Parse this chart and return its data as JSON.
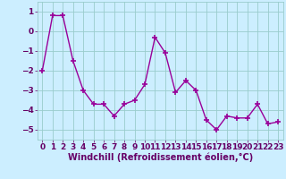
{
  "x": [
    0,
    1,
    2,
    3,
    4,
    5,
    6,
    7,
    8,
    9,
    10,
    11,
    12,
    13,
    14,
    15,
    16,
    17,
    18,
    19,
    20,
    21,
    22,
    23
  ],
  "y": [
    -2.0,
    0.8,
    0.8,
    -1.5,
    -3.0,
    -3.7,
    -3.7,
    -4.3,
    -3.7,
    -3.5,
    -2.7,
    -0.3,
    -1.1,
    -3.1,
    -2.5,
    -3.0,
    -4.5,
    -5.0,
    -4.3,
    -4.4,
    -4.4,
    -3.7,
    -4.7,
    -4.6
  ],
  "line_color": "#990099",
  "marker": "+",
  "marker_size": 4,
  "bg_color": "#cceeff",
  "grid_color": "#99cccc",
  "xlabel": "Windchill (Refroidissement éolien,°C)",
  "ylim": [
    -5.5,
    1.5
  ],
  "xlim": [
    -0.5,
    23.5
  ],
  "yticks": [
    -5,
    -4,
    -3,
    -2,
    -1,
    0,
    1
  ],
  "xticks": [
    0,
    1,
    2,
    3,
    4,
    5,
    6,
    7,
    8,
    9,
    10,
    11,
    12,
    13,
    14,
    15,
    16,
    17,
    18,
    19,
    20,
    21,
    22,
    23
  ],
  "label_color": "#660066",
  "tick_color": "#660066",
  "font_size": 6.5,
  "xlabel_fontsize": 7,
  "linewidth": 1.0,
  "markeredgewidth": 1.2
}
